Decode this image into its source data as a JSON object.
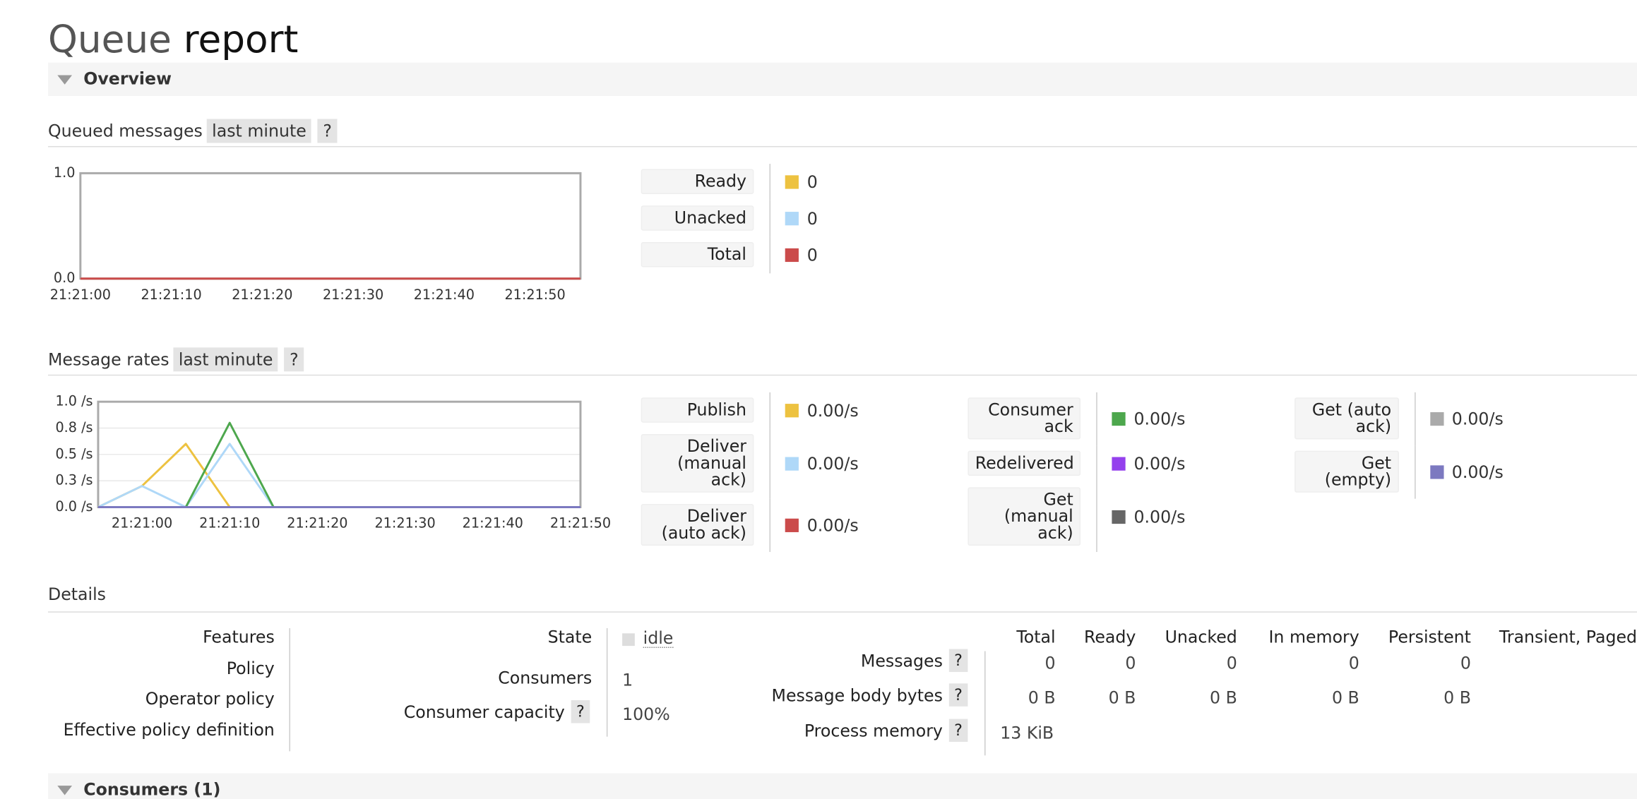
{
  "header": {
    "title": "Queue",
    "name": "report"
  },
  "overview": {
    "heading": "Overview"
  },
  "queued_messages": {
    "heading": "Queued messages",
    "range": "last minute",
    "help": "?",
    "chart_data": {
      "type": "line",
      "x": [
        "21:21:00",
        "21:21:05",
        "21:21:10",
        "21:21:15",
        "21:21:20",
        "21:21:25",
        "21:21:30",
        "21:21:35",
        "21:21:40",
        "21:21:45",
        "21:21:50",
        "21:21:55"
      ],
      "xlim": [
        "21:21:00",
        "21:21:55"
      ],
      "xticks": [
        "21:21:00",
        "21:21:10",
        "21:21:20",
        "21:21:30",
        "21:21:40",
        "21:21:50"
      ],
      "ylim": [
        0,
        1
      ],
      "yticks": [
        {
          "value": 0,
          "label": "0.0"
        },
        {
          "value": 1,
          "label": "1.0"
        }
      ],
      "grid": false,
      "series": [
        {
          "name": "Ready",
          "color": "#edc240",
          "values": [
            0,
            0,
            0,
            0,
            0,
            0,
            0,
            0,
            0,
            0,
            0,
            0
          ],
          "current": 0
        },
        {
          "name": "Unacked",
          "color": "#afd8f8",
          "values": [
            0,
            0,
            0,
            0,
            0,
            0,
            0,
            0,
            0,
            0,
            0,
            0
          ],
          "current": 0
        },
        {
          "name": "Total",
          "color": "#cb4b4b",
          "values": [
            0,
            0,
            0,
            0,
            0,
            0,
            0,
            0,
            0,
            0,
            0,
            0
          ],
          "current": 0
        }
      ]
    }
  },
  "message_rates": {
    "heading": "Message rates",
    "range": "last minute",
    "help": "?",
    "chart_data": {
      "type": "line",
      "x": [
        "21:20:55",
        "21:21:00",
        "21:21:05",
        "21:21:10",
        "21:21:15",
        "21:21:20",
        "21:21:25",
        "21:21:30",
        "21:21:35",
        "21:21:40",
        "21:21:45",
        "21:21:50"
      ],
      "xlim": [
        "21:20:55",
        "21:21:50"
      ],
      "xticks": [
        "21:21:00",
        "21:21:10",
        "21:21:20",
        "21:21:30",
        "21:21:40",
        "21:21:50"
      ],
      "ylim": [
        0,
        1
      ],
      "yticks": [
        {
          "value": 0,
          "label": "0.0 /s"
        },
        {
          "value": 0.25,
          "label": "0.3 /s"
        },
        {
          "value": 0.5,
          "label": "0.5 /s"
        },
        {
          "value": 0.75,
          "label": "0.8 /s"
        },
        {
          "value": 1,
          "label": "1.0 /s"
        }
      ],
      "grid": true,
      "series": [
        {
          "name": "Publish",
          "color": "#edc240",
          "values": [
            0,
            0.2,
            0.6,
            0,
            0,
            0,
            0,
            0,
            0,
            0,
            0,
            0
          ],
          "current": "0.00/s"
        },
        {
          "name": "Deliver (manual ack)",
          "color": "#afd8f8",
          "values": [
            0,
            0.2,
            0,
            0.6,
            0,
            0,
            0,
            0,
            0,
            0,
            0,
            0
          ],
          "current": "0.00/s"
        },
        {
          "name": "Deliver (auto ack)",
          "color": "#cb4b4b",
          "values": [
            0,
            0,
            0,
            0,
            0,
            0,
            0,
            0,
            0,
            0,
            0,
            0
          ],
          "current": "0.00/s"
        },
        {
          "name": "Consumer ack",
          "color": "#4da74d",
          "values": [
            0,
            0,
            0,
            0.8,
            0,
            0,
            0,
            0,
            0,
            0,
            0,
            0
          ],
          "current": "0.00/s"
        },
        {
          "name": "Redelivered",
          "color": "#9440ed",
          "values": [
            0,
            0,
            0,
            0,
            0,
            0,
            0,
            0,
            0,
            0,
            0,
            0
          ],
          "current": "0.00/s"
        },
        {
          "name": "Get (manual ack)",
          "color": "#666666",
          "values": [
            0,
            0,
            0,
            0,
            0,
            0,
            0,
            0,
            0,
            0,
            0,
            0
          ],
          "current": "0.00/s"
        },
        {
          "name": "Get (auto ack)",
          "color": "#aaaaaa",
          "values": [
            0,
            0,
            0,
            0,
            0,
            0,
            0,
            0,
            0,
            0,
            0,
            0
          ],
          "current": "0.00/s"
        },
        {
          "name": "Get (empty)",
          "color": "#7c79c0",
          "values": [
            0,
            0,
            0,
            0,
            0,
            0,
            0,
            0,
            0,
            0,
            0,
            0
          ],
          "current": "0.00/s"
        }
      ]
    }
  },
  "details": {
    "heading": "Details",
    "policy_labels": [
      "Features",
      "Policy",
      "Operator policy",
      "Effective policy definition"
    ],
    "state": {
      "label": "State",
      "value": "idle"
    },
    "consumers": {
      "label": "Consumers",
      "value": 1
    },
    "capacity": {
      "label": "Consumer capacity",
      "help": "?",
      "value": "100%"
    },
    "table": {
      "columns": [
        "Total",
        "Ready",
        "Unacked",
        "In memory",
        "Persistent",
        "Transient, Paged"
      ],
      "rows": [
        {
          "label": "Messages",
          "help": "?",
          "values": [
            0,
            0,
            0,
            0,
            0
          ]
        },
        {
          "label": "Message body bytes",
          "help": "?",
          "values": [
            "0 B",
            "0 B",
            "0 B",
            "0 B",
            "0 B"
          ]
        },
        {
          "label": "Process memory",
          "help": "?",
          "values": [
            "13 KiB"
          ]
        }
      ]
    }
  },
  "consumers": {
    "heading": "Consumers (1)"
  }
}
